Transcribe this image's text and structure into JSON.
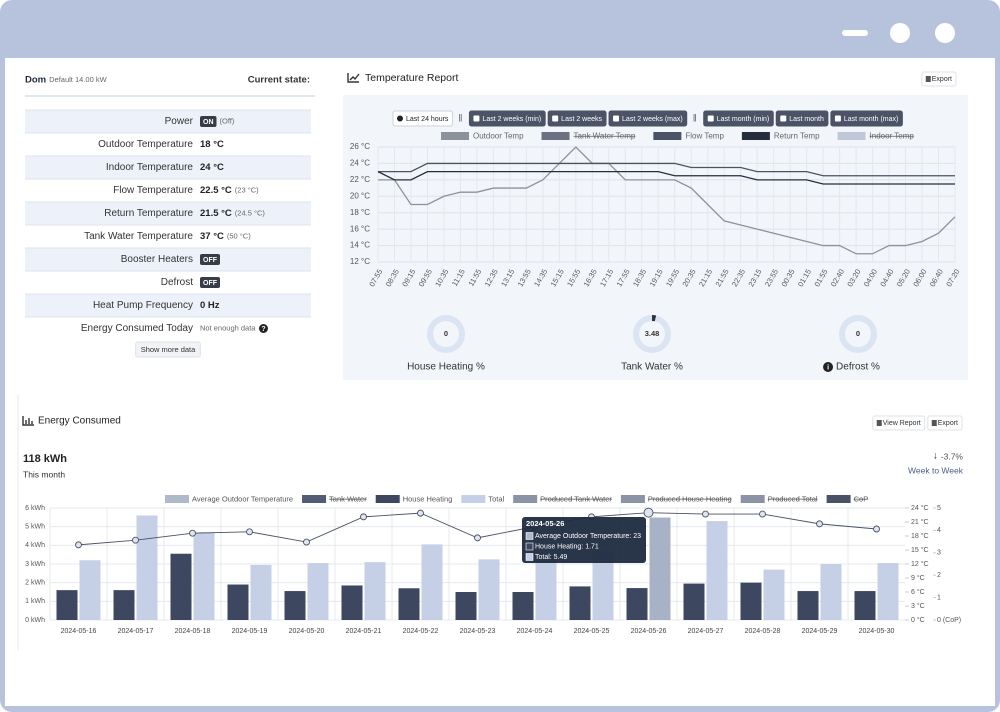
{
  "status": {
    "title": "Dom",
    "subtitle": "Default 14.00 kW",
    "state_label": "Current state:",
    "rows": [
      {
        "label": "Power",
        "value": "ON",
        "note": "(Off)",
        "badge": true
      },
      {
        "label": "Outdoor Temperature",
        "value": "18 °C"
      },
      {
        "label": "Indoor Temperature",
        "value": "24 °C"
      },
      {
        "label": "Flow Temperature",
        "value": "22.5 °C",
        "note": "(23 °C)"
      },
      {
        "label": "Return Temperature",
        "value": "21.5 °C",
        "note": "(24.5 °C)"
      },
      {
        "label": "Tank Water Temperature",
        "value": "37 °C",
        "note": "(50 °C)"
      },
      {
        "label": "Booster Heaters",
        "value": "OFF",
        "badge": true
      },
      {
        "label": "Defrost",
        "value": "OFF",
        "badge": true
      },
      {
        "label": "Heat Pump Frequency",
        "value": "0 Hz"
      },
      {
        "label": "Energy Consumed Today",
        "note": "Not enough data",
        "help": true
      }
    ],
    "button": "Show more data"
  },
  "temperature_report": {
    "title": "Temperature Report",
    "export": "Export",
    "ranges": [
      "Last 24 hours",
      "Last 2 weeks (min)",
      "Last 2 weeks",
      "Last 2 weeks (max)",
      "Last month (min)",
      "Last month",
      "Last month (max)"
    ],
    "chart": {
      "type": "line",
      "categories": [
        "07:55",
        "08:35",
        "09:15",
        "09:55",
        "10:35",
        "11:15",
        "11:55",
        "12:35",
        "13:15",
        "13:55",
        "14:35",
        "15:15",
        "15:55",
        "16:35",
        "17:15",
        "17:55",
        "18:35",
        "19:15",
        "19:55",
        "20:35",
        "21:15",
        "21:55",
        "22:35",
        "23:15",
        "23:55",
        "00:35",
        "01:15",
        "01:55",
        "02:40",
        "03:20",
        "04:00",
        "04:40",
        "05:20",
        "06:00",
        "06:40",
        "07:20"
      ],
      "series": [
        {
          "name": "Outdoor Temp",
          "color": "#8c929c",
          "values": [
            22,
            22,
            19,
            19,
            20,
            20.5,
            20.5,
            21,
            21,
            21,
            22,
            24,
            26,
            24,
            24,
            22,
            22,
            22,
            22,
            21,
            19,
            17,
            16.5,
            16,
            15.5,
            15,
            14.5,
            14,
            14,
            13,
            13,
            14,
            14,
            14.5,
            15.5,
            17.5
          ]
        },
        {
          "name": "Tank Water Temp",
          "color": "#6b7180",
          "hidden": true
        },
        {
          "name": "Flow Temp",
          "color": "#4a5366",
          "values": [
            23,
            23,
            23,
            24,
            24,
            24,
            24,
            24,
            24,
            24,
            24,
            24,
            24,
            24,
            24,
            24,
            24,
            24,
            24,
            23.5,
            23.5,
            23.5,
            23.5,
            23,
            23,
            23,
            23,
            22.5,
            22.5,
            22.5,
            22.5,
            22.5,
            22.5,
            22.5,
            22.5,
            22.5
          ]
        },
        {
          "name": "Return Temp",
          "color": "#262d3b",
          "values": [
            23,
            22,
            22,
            23,
            23,
            23,
            23,
            23,
            23,
            23,
            23,
            23,
            23,
            23,
            23,
            23,
            23,
            23,
            22.5,
            22.5,
            22.5,
            22.5,
            22.5,
            22,
            22,
            22,
            22,
            21.5,
            21.5,
            21.5,
            21.5,
            21.5,
            21.5,
            21.5,
            21.5,
            21.5
          ]
        },
        {
          "name": "Indoor Temp",
          "color": "#c0c8d8",
          "hidden": true
        }
      ],
      "ylim": [
        12,
        26
      ],
      "yticks": [
        {
          "value": 12,
          "label": "12 °C"
        },
        {
          "value": 14,
          "label": "14 °C"
        },
        {
          "value": 16,
          "label": "16 °C"
        },
        {
          "value": 18,
          "label": "18 °C"
        },
        {
          "value": 20,
          "label": "20 °C"
        },
        {
          "value": 22,
          "label": "22 °C"
        },
        {
          "value": 24,
          "label": "24 °C"
        },
        {
          "value": 26,
          "label": "26 °C"
        }
      ],
      "grid": true
    },
    "gauges": [
      {
        "label": "House Heating %",
        "value": 0
      },
      {
        "label": "Tank Water %",
        "value": 3.48
      },
      {
        "label": "Defrost %",
        "value": 0,
        "info": true
      }
    ]
  },
  "energy": {
    "title": "Energy Consumed",
    "view_report": "View Report",
    "export": "Export",
    "total": "118 kWh",
    "period": "This month",
    "change": "-3.7%",
    "change_period": "Week to Week",
    "chart": {
      "type": "bar",
      "categories": [
        "2024-05-16",
        "2024-05-17",
        "2024-05-18",
        "2024-05-19",
        "2024-05-20",
        "2024-05-21",
        "2024-05-22",
        "2024-05-23",
        "2024-05-24",
        "2024-05-25",
        "2024-05-26",
        "2024-05-27",
        "2024-05-28",
        "2024-05-29",
        "2024-05-30"
      ],
      "series": [
        {
          "name": "Average Outdoor Temperature",
          "color": "#b0b9ca",
          "line_color": "#4a5262",
          "axis": "y2",
          "values": [
            16.1,
            17.1,
            18.6,
            18.9,
            16.7,
            22.1,
            22.9,
            17.6,
            20,
            22.1,
            23,
            22.7,
            22.7,
            20.6,
            19.5
          ]
        },
        {
          "name": "Tank Water",
          "color": "#525c74",
          "hidden": true
        },
        {
          "name": "House Heating",
          "color": "#3d4760",
          "values": [
            1.6,
            1.6,
            3.55,
            1.9,
            1.55,
            1.85,
            1.7,
            1.5,
            1.5,
            1.8,
            1.71,
            1.95,
            2,
            1.55,
            1.55
          ]
        },
        {
          "name": "Total",
          "color": "#c5d0e6",
          "highlight_color": "#a8b2c6",
          "values": [
            3.2,
            5.6,
            4.7,
            2.95,
            3.05,
            3.1,
            4.05,
            3.25,
            3.4,
            3.7,
            5.49,
            5.3,
            2.7,
            3,
            3.05
          ]
        },
        {
          "name": "Produced Tank Water",
          "color": "#8b93a5",
          "hidden": true
        },
        {
          "name": "Produced House Heating",
          "color": "#8b93a5",
          "hidden": true
        },
        {
          "name": "Produced Total",
          "color": "#8b93a5",
          "hidden": true
        },
        {
          "name": "CoP",
          "color": "#4a5366",
          "hidden": true
        }
      ],
      "ylim": [
        0,
        6
      ],
      "yticks": [
        {
          "value": 0,
          "label": "0 kWh"
        },
        {
          "value": 1,
          "label": "1 kWh"
        },
        {
          "value": 2,
          "label": "2 kWh"
        },
        {
          "value": 3,
          "label": "3 kWh"
        },
        {
          "value": 4,
          "label": "4 kWh"
        },
        {
          "value": 5,
          "label": "5 kWh"
        },
        {
          "value": 6,
          "label": "6 kWh"
        }
      ],
      "y2lim": [
        0,
        24
      ],
      "y2ticks": [
        {
          "value": 0,
          "label": "0 °C"
        },
        {
          "value": 3,
          "label": "3 °C"
        },
        {
          "value": 6,
          "label": "6 °C"
        },
        {
          "value": 9,
          "label": "9 °C"
        },
        {
          "value": 12,
          "label": "12 °C"
        },
        {
          "value": 15,
          "label": "15 °C"
        },
        {
          "value": 18,
          "label": "18 °C"
        },
        {
          "value": 21,
          "label": "21 °C"
        },
        {
          "value": 24,
          "label": "24 °C"
        }
      ],
      "y3lim": [
        0,
        5
      ],
      "y3ticks": [
        {
          "value": 0,
          "label": "0 (CoP)"
        },
        1,
        2,
        3,
        4,
        5
      ],
      "grid": true,
      "tooltip": {
        "title": "2024-05-26",
        "lines": [
          "Average Outdoor Temperature: 23",
          "House Heating: 1.71",
          "Total: 5.49"
        ]
      }
    }
  }
}
